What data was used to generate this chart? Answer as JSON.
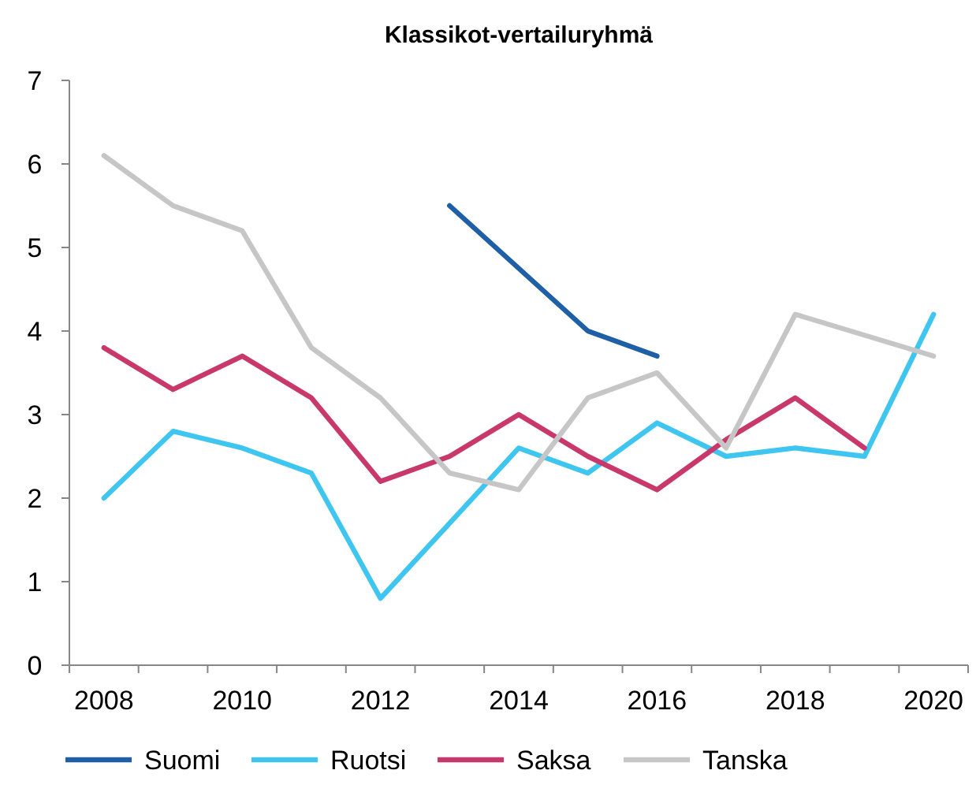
{
  "chart_data": {
    "type": "line",
    "title": "Klassikot-vertailuryhmä",
    "categories": [
      "2008",
      null,
      "2010",
      null,
      "2012",
      null,
      "2014",
      null,
      "2016",
      null,
      "2018",
      null,
      "2020"
    ],
    "series": [
      {
        "name": "Suomi",
        "color": "#1f5fa6",
        "values": [
          null,
          null,
          null,
          null,
          null,
          5.5,
          4.75,
          4.0,
          3.7,
          null,
          null,
          null,
          null
        ]
      },
      {
        "name": "Ruotsi",
        "color": "#3ec6f0",
        "values": [
          2.0,
          2.8,
          2.6,
          2.3,
          0.8,
          1.7,
          2.6,
          2.3,
          2.9,
          2.5,
          2.6,
          2.5,
          4.2
        ]
      },
      {
        "name": "Saksa",
        "color": "#c9386a",
        "values": [
          3.8,
          3.3,
          3.7,
          3.2,
          2.2,
          2.5,
          3.0,
          2.5,
          2.1,
          2.7,
          3.2,
          2.6,
          null
        ]
      },
      {
        "name": "Tanska",
        "color": "#c6c6c6",
        "values": [
          6.1,
          5.5,
          5.2,
          3.8,
          3.2,
          2.3,
          2.1,
          3.2,
          3.5,
          2.6,
          4.2,
          3.95,
          3.7
        ]
      }
    ],
    "ylim": [
      0,
      7
    ],
    "yticks": [
      0,
      1,
      2,
      3,
      4,
      5,
      6,
      7
    ],
    "grid": false,
    "legend": "bottom",
    "marker": "none",
    "line_style": "solid"
  }
}
